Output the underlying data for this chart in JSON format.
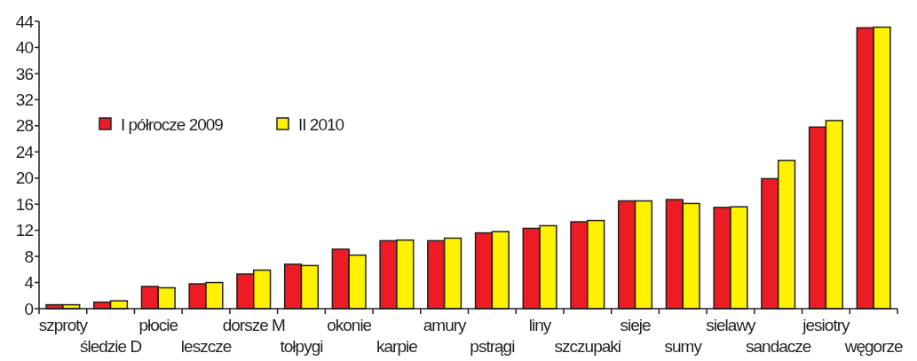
{
  "chart_data": {
    "type": "bar",
    "categories": [
      "szproty",
      "śledzie D",
      "płocie",
      "leszcze",
      "dorsze M",
      "tołpygi",
      "okonie",
      "karpie",
      "amury",
      "pstrągi",
      "liny",
      "szczupaki",
      "sieje",
      "sumy",
      "sielawy",
      "sandacze",
      "jesiotry",
      "węgorze"
    ],
    "series": [
      {
        "name": "I półrocze 2009",
        "color": "#ed1c24",
        "values": [
          0.6,
          1.0,
          3.4,
          3.8,
          5.3,
          6.8,
          9.1,
          10.4,
          10.4,
          11.6,
          12.3,
          13.3,
          16.5,
          16.7,
          15.5,
          19.9,
          27.8,
          43.0
        ]
      },
      {
        "name": "II 2010",
        "color": "#fff200",
        "values": [
          0.6,
          1.2,
          3.2,
          4.0,
          5.9,
          6.6,
          8.2,
          10.5,
          10.8,
          11.8,
          12.7,
          13.5,
          16.5,
          16.1,
          15.6,
          22.7,
          28.8,
          43.1
        ]
      }
    ],
    "ylim": [
      0,
      44
    ],
    "yticks": [
      0,
      4,
      8,
      12,
      16,
      20,
      24,
      28,
      32,
      36,
      40,
      44
    ],
    "grid": false,
    "legend": "left"
  }
}
